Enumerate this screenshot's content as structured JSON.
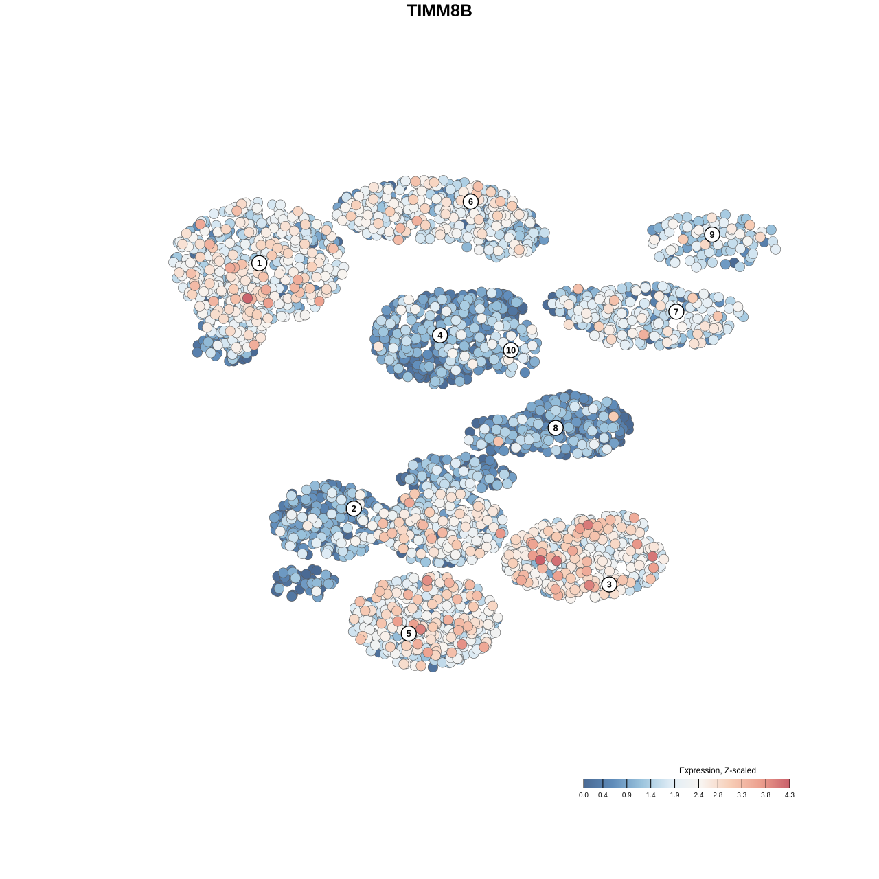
{
  "chart_data": {
    "type": "scatter",
    "title": "TIMM8B",
    "xlabel": "",
    "ylabel": "",
    "xlim": [
      0,
      100
    ],
    "ylim": [
      0,
      100
    ],
    "grid": false,
    "legend_placement": "bottom-right",
    "color_scale": {
      "title": "Expression, Z-scaled",
      "min": 0.0,
      "max": 4.3,
      "ticks": [
        0.0,
        0.4,
        0.9,
        1.4,
        1.9,
        2.4,
        2.8,
        3.3,
        3.8,
        4.3
      ],
      "tick_labels": [
        "0.0",
        "0.4",
        "0.9",
        "1.4",
        "1.9",
        "2.4",
        "2.8",
        "3.3",
        "3.8",
        "4.3"
      ],
      "colors": [
        "#4a6a94",
        "#5f8cba",
        "#9dc5de",
        "#e2eef6",
        "#f8f4f0",
        "#f7cdb6",
        "#ec9f8e",
        "#c95f6a"
      ]
    },
    "clusters": [
      {
        "label": "1",
        "x": 19.1,
        "y": 78.1
      },
      {
        "label": "2",
        "x": 33.9,
        "y": 38.6
      },
      {
        "label": "3",
        "x": 73.9,
        "y": 26.4
      },
      {
        "label": "4",
        "x": 47.4,
        "y": 66.5
      },
      {
        "label": "5",
        "x": 42.5,
        "y": 18.5
      },
      {
        "label": "6",
        "x": 52.2,
        "y": 88.0
      },
      {
        "label": "7",
        "x": 84.4,
        "y": 70.3
      },
      {
        "label": "8",
        "x": 65.5,
        "y": 51.6
      },
      {
        "label": "9",
        "x": 90.0,
        "y": 82.7
      },
      {
        "label": "10",
        "x": 58.5,
        "y": 64.1
      }
    ],
    "regions": [
      {
        "cluster": "1",
        "x": 19.1,
        "y": 78.1,
        "rx": 13.5,
        "ry": 10.0,
        "mean": 1.8,
        "n": 480
      },
      {
        "cluster": "1",
        "x": 15.5,
        "y": 71.0,
        "rx": 6.0,
        "ry": 7.0,
        "mean": 1.7,
        "n": 150
      },
      {
        "cluster": "1",
        "x": 13.5,
        "y": 64.5,
        "rx": 5.0,
        "ry": 2.5,
        "mean": 0.4,
        "n": 45
      },
      {
        "cluster": "6",
        "x": 45.5,
        "y": 86.5,
        "rx": 14.5,
        "ry": 5.0,
        "mean": 1.7,
        "n": 320
      },
      {
        "cluster": "6",
        "x": 57.0,
        "y": 83.0,
        "rx": 7.0,
        "ry": 4.0,
        "mean": 1.3,
        "n": 110
      },
      {
        "cluster": "4",
        "x": 47.0,
        "y": 66.0,
        "rx": 10.0,
        "ry": 7.5,
        "mean": 0.5,
        "n": 360
      },
      {
        "cluster": "4",
        "x": 54.5,
        "y": 70.5,
        "rx": 6.0,
        "ry": 3.0,
        "mean": 0.2,
        "n": 90
      },
      {
        "cluster": "10",
        "x": 59.0,
        "y": 64.5,
        "rx": 3.8,
        "ry": 4.5,
        "mean": 1.0,
        "n": 55
      },
      {
        "cluster": "9",
        "x": 90.0,
        "y": 81.5,
        "rx": 10.5,
        "ry": 4.5,
        "mean": 1.5,
        "n": 120
      },
      {
        "cluster": "7",
        "x": 81.0,
        "y": 69.5,
        "rx": 14.0,
        "ry": 5.0,
        "mean": 1.6,
        "n": 230
      },
      {
        "cluster": "7",
        "x": 70.0,
        "y": 71.5,
        "rx": 6.0,
        "ry": 2.5,
        "mean": 1.2,
        "n": 60
      },
      {
        "cluster": "8",
        "x": 68.5,
        "y": 52.0,
        "rx": 8.5,
        "ry": 5.0,
        "mean": 0.4,
        "n": 200
      },
      {
        "cluster": "8",
        "x": 58.0,
        "y": 50.5,
        "rx": 6.5,
        "ry": 3.0,
        "mean": 0.5,
        "n": 90
      },
      {
        "cluster": "2",
        "x": 30.0,
        "y": 36.5,
        "rx": 9.0,
        "ry": 6.0,
        "mean": 0.8,
        "n": 240
      },
      {
        "cluster": "2",
        "x": 26.0,
        "y": 26.5,
        "rx": 5.0,
        "ry": 2.5,
        "mean": 0.4,
        "n": 40
      },
      {
        "cluster": "3",
        "x": 70.0,
        "y": 30.5,
        "rx": 12.5,
        "ry": 6.5,
        "mean": 2.1,
        "n": 380
      },
      {
        "cluster": "3",
        "x": 75.0,
        "y": 36.0,
        "rx": 4.5,
        "ry": 1.6,
        "mean": 2.3,
        "n": 35
      },
      {
        "cluster": "5",
        "x": 45.0,
        "y": 20.5,
        "rx": 11.5,
        "ry": 7.5,
        "mean": 1.9,
        "n": 400
      },
      {
        "cluster": "5",
        "x": 47.5,
        "y": 35.5,
        "rx": 10.0,
        "ry": 6.0,
        "mean": 1.7,
        "n": 300
      },
      {
        "cluster": "5",
        "x": 50.0,
        "y": 44.0,
        "rx": 9.0,
        "ry": 3.0,
        "mean": 0.5,
        "n": 140
      }
    ]
  }
}
